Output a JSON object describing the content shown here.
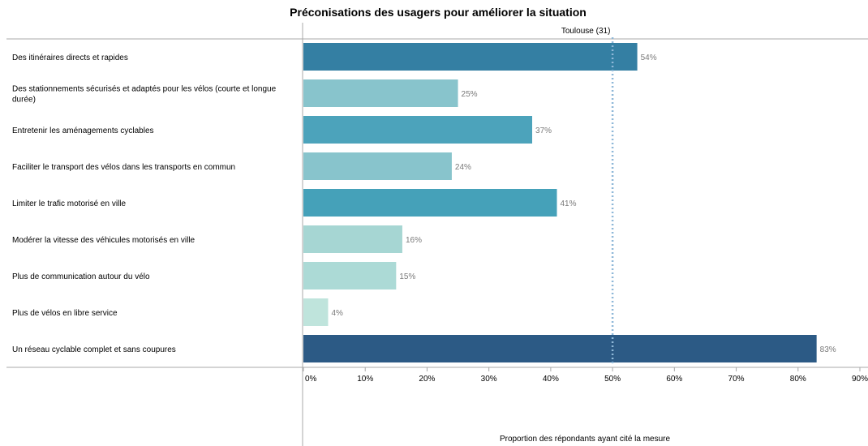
{
  "chart_data": {
    "type": "bar",
    "orientation": "horizontal",
    "title": "Préconisations des usagers pour améliorer la situation",
    "xlabel": "Proportion des répondants ayant cité la mesure",
    "ylabel": "",
    "xlim": [
      0,
      90
    ],
    "xticks": [
      "0%",
      "10%",
      "20%",
      "30%",
      "40%",
      "50%",
      "60%",
      "70%",
      "80%",
      "90%"
    ],
    "grid": false,
    "categories": [
      "Des itinéraires directs et rapides",
      "Des stationnements sécurisés et adaptés pour les vélos (courte et longue durée)",
      "Entretenir les aménagements cyclables",
      "Faciliter le transport des vélos dans les transports en commun",
      "Limiter le trafic motorisé en ville",
      "Modérer la vitesse des véhicules motorisés en ville",
      "Plus de communication autour du vélo",
      "Plus de vélos en libre service",
      "Un réseau cyclable complet et sans coupures"
    ],
    "values": [
      54,
      25,
      37,
      24,
      41,
      16,
      15,
      4,
      83
    ],
    "value_labels": [
      "54%",
      "25%",
      "37%",
      "24%",
      "41%",
      "16%",
      "15%",
      "4%",
      "83%"
    ],
    "bar_colors": [
      "#347fa3",
      "#88c4cc",
      "#4ca3bb",
      "#88c4cc",
      "#45a1b9",
      "#a6d6d3",
      "#acdad6",
      "#bfe4dc",
      "#2c5a85"
    ],
    "reference_line": {
      "value": 50,
      "label": "Toulouse (31)",
      "color": "#8fb8d8",
      "style": "dotted"
    }
  }
}
